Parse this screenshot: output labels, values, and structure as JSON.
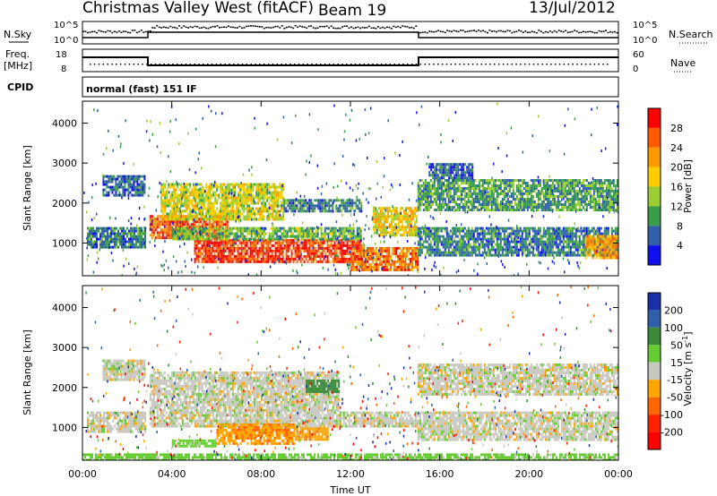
{
  "header": {
    "station": "Christmas Valley West (fitACF)",
    "beam": "Beam 19",
    "date": "13/Jul/2012"
  },
  "noise_panel": {
    "left_label": "N.Sky",
    "right_label": "N.Search",
    "left_ticks": [
      "10^5",
      "10^0"
    ],
    "right_ticks": [
      "10^5",
      "10^0"
    ]
  },
  "freq_panel": {
    "left_label_line1": "Freq.",
    "left_label_line2": "[MHz]",
    "right_label": "Nave",
    "left_ticks": [
      "18",
      "8"
    ],
    "right_ticks": [
      "60",
      "0"
    ]
  },
  "cpid": {
    "label": "CPID",
    "value": "normal (fast) 151 IF"
  },
  "x_axis": {
    "label": "Time UT",
    "ticks": [
      "00:00",
      "04:00",
      "08:00",
      "12:00",
      "16:00",
      "20:00",
      "00:00"
    ]
  },
  "chart_data": [
    {
      "type": "heatmap",
      "name": "Power",
      "xlabel": "Time UT",
      "ylabel": "Slant Range [km]",
      "colorbar_label": "Power [dB]",
      "x_range": [
        "00:00",
        "24:00"
      ],
      "ylim": [
        180,
        4550
      ],
      "y_ticks": [
        1000,
        2000,
        3000,
        4000
      ],
      "colorbar_ticks": [
        "28",
        "24",
        "20",
        "16",
        "12",
        "8",
        "4"
      ],
      "colorbar_colors": [
        "#ff0000",
        "#ff5a00",
        "#ff9900",
        "#ffcc00",
        "#9acd32",
        "#3a9d4a",
        "#2e5fa8",
        "#1010ee"
      ],
      "bands": [
        {
          "t0": 0.2,
          "t1": 2.8,
          "r0": 900,
          "r1": 1400,
          "level": 8
        },
        {
          "t0": 0.9,
          "t1": 2.8,
          "r0": 2200,
          "r1": 2700,
          "level": 6
        },
        {
          "t0": 3.0,
          "t1": 6.5,
          "r0": 1100,
          "r1": 1700,
          "level": 26
        },
        {
          "t0": 3.5,
          "t1": 9.0,
          "r0": 1600,
          "r1": 2500,
          "level": 16
        },
        {
          "t0": 5.0,
          "t1": 12.5,
          "r0": 500,
          "r1": 1100,
          "level": 28
        },
        {
          "t0": 4.0,
          "t1": 12.5,
          "r0": 1100,
          "r1": 1400,
          "level": 12
        },
        {
          "t0": 9.0,
          "t1": 12.5,
          "r0": 1800,
          "r1": 2100,
          "level": 8
        },
        {
          "t0": 12.0,
          "t1": 15.0,
          "r0": 300,
          "r1": 900,
          "level": 24
        },
        {
          "t0": 13.0,
          "t1": 15.0,
          "r0": 1200,
          "r1": 1900,
          "level": 18
        },
        {
          "t0": 15.0,
          "t1": 24.0,
          "r0": 700,
          "r1": 1400,
          "level": 8
        },
        {
          "t0": 15.0,
          "t1": 24.0,
          "r0": 1800,
          "r1": 2600,
          "level": 10
        },
        {
          "t0": 15.5,
          "t1": 17.5,
          "r0": 2600,
          "r1": 3000,
          "level": 6
        },
        {
          "t0": 22.5,
          "t1": 24.0,
          "r0": 600,
          "r1": 1200,
          "level": 22
        }
      ]
    },
    {
      "type": "heatmap",
      "name": "Velocity",
      "xlabel": "Time UT",
      "ylabel": "Slant Range [km]",
      "colorbar_label": "Velocity [m s^-1]",
      "x_range": [
        "00:00",
        "24:00"
      ],
      "ylim": [
        180,
        4550
      ],
      "y_ticks": [
        1000,
        2000,
        3000,
        4000
      ],
      "colorbar_ticks": [
        "200",
        "100",
        "50",
        "15",
        "-15",
        "-50",
        "-100",
        "-200"
      ],
      "colorbar_colors": [
        "#1a2fa8",
        "#2e5fa8",
        "#3a8a3a",
        "#66cc33",
        "#c8c8c0",
        "#ffa500",
        "#ff6600",
        "#ff2200",
        "#ff0000"
      ],
      "bands": [
        {
          "t0": 0.2,
          "t1": 2.8,
          "r0": 900,
          "r1": 1400,
          "vel": 0
        },
        {
          "t0": 0.9,
          "t1": 2.8,
          "r0": 2200,
          "r1": 2700,
          "vel": 0
        },
        {
          "t0": 3.0,
          "t1": 11.5,
          "r0": 1400,
          "r1": 2400,
          "vel": 0
        },
        {
          "t0": 3.0,
          "t1": 15.0,
          "r0": 1000,
          "r1": 1400,
          "vel": 0
        },
        {
          "t0": 6.0,
          "t1": 9.5,
          "r0": 600,
          "r1": 1100,
          "vel": -40
        },
        {
          "t0": 9.5,
          "t1": 11.0,
          "r0": 700,
          "r1": 1000,
          "vel": -40
        },
        {
          "t0": 4.0,
          "t1": 6.0,
          "r0": 500,
          "r1": 700,
          "vel": 30
        },
        {
          "t0": 10.0,
          "t1": 11.5,
          "r0": 1900,
          "r1": 2200,
          "vel": 70
        },
        {
          "t0": 15.0,
          "t1": 24.0,
          "r0": 700,
          "r1": 1400,
          "vel": 0
        },
        {
          "t0": 15.0,
          "t1": 24.0,
          "r0": 1800,
          "r1": 2600,
          "vel": 0
        },
        {
          "t0": 0.0,
          "t1": 24.0,
          "r0": 180,
          "r1": 350,
          "vel": 30
        }
      ]
    }
  ]
}
